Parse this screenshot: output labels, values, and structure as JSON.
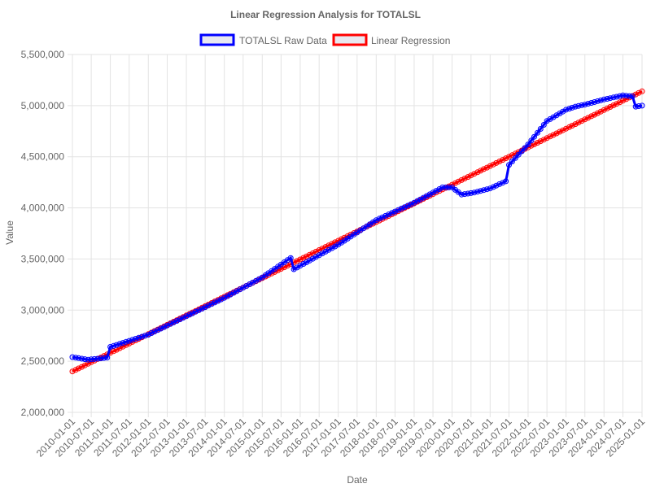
{
  "chart_data": {
    "type": "line",
    "title": "Linear Regression Analysis for TOTALSL",
    "xlabel": "Date",
    "ylabel": "Value",
    "ylim": [
      2000000,
      5500000
    ],
    "y_ticks": [
      "2,000,000",
      "2,500,000",
      "3,000,000",
      "3,500,000",
      "4,000,000",
      "4,500,000",
      "5,000,000",
      "5,500,000"
    ],
    "y_tick_values": [
      2000000,
      2500000,
      3000000,
      3500000,
      4000000,
      4500000,
      5000000,
      5500000
    ],
    "x_start": "2010-01-01",
    "x_end": "2025-01-01",
    "x_ticks": [
      "2010-01-01",
      "2010-07-01",
      "2011-01-01",
      "2011-07-01",
      "2012-01-01",
      "2012-07-01",
      "2013-01-01",
      "2013-07-01",
      "2014-01-01",
      "2014-07-01",
      "2015-01-01",
      "2015-07-01",
      "2016-01-01",
      "2016-07-01",
      "2017-01-01",
      "2017-07-01",
      "2018-01-01",
      "2018-07-01",
      "2019-01-01",
      "2019-07-01",
      "2020-01-01",
      "2020-07-01",
      "2021-01-01",
      "2021-07-01",
      "2022-01-01",
      "2022-07-01",
      "2023-01-01",
      "2023-07-01",
      "2024-01-01",
      "2024-07-01",
      "2025-01-01"
    ],
    "grid": true,
    "legend_position": "top",
    "series": [
      {
        "name": "TOTALSL Raw Data",
        "color": "#0000ff",
        "anchors": [
          [
            "2010-01-01",
            2540000
          ],
          [
            "2010-06-01",
            2515000
          ],
          [
            "2010-12-01",
            2535000
          ],
          [
            "2011-01-01",
            2640000
          ],
          [
            "2012-01-01",
            2760000
          ],
          [
            "2013-01-01",
            2940000
          ],
          [
            "2014-01-01",
            3120000
          ],
          [
            "2015-01-01",
            3320000
          ],
          [
            "2015-10-01",
            3510000
          ],
          [
            "2015-11-01",
            3400000
          ],
          [
            "2017-01-01",
            3640000
          ],
          [
            "2018-01-01",
            3880000
          ],
          [
            "2019-01-01",
            4050000
          ],
          [
            "2019-10-01",
            4200000
          ],
          [
            "2020-01-01",
            4200000
          ],
          [
            "2020-04-01",
            4130000
          ],
          [
            "2020-08-01",
            4150000
          ],
          [
            "2021-01-01",
            4190000
          ],
          [
            "2021-06-01",
            4260000
          ],
          [
            "2021-07-01",
            4420000
          ],
          [
            "2022-01-01",
            4620000
          ],
          [
            "2022-07-01",
            4850000
          ],
          [
            "2023-01-01",
            4960000
          ],
          [
            "2023-04-01",
            4990000
          ],
          [
            "2023-07-01",
            5010000
          ],
          [
            "2024-01-01",
            5060000
          ],
          [
            "2024-07-01",
            5100000
          ],
          [
            "2024-10-01",
            5090000
          ],
          [
            "2024-11-01",
            4990000
          ],
          [
            "2025-01-01",
            5000000
          ]
        ]
      },
      {
        "name": "Linear Regression",
        "color": "#ff0000",
        "anchors": [
          [
            "2010-01-01",
            2400000
          ],
          [
            "2025-01-01",
            5140000
          ]
        ]
      }
    ]
  }
}
